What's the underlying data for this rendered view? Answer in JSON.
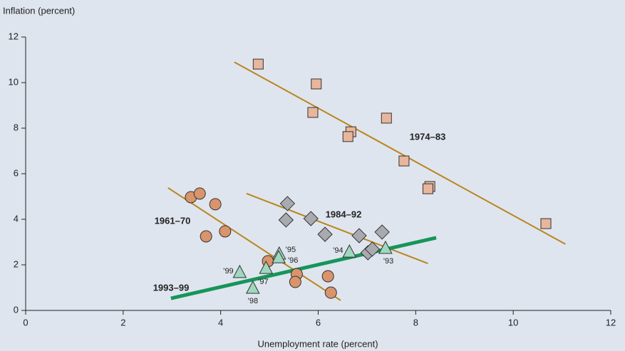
{
  "chart_data": {
    "type": "scatter",
    "y_label": "Inflation (percent)",
    "x_label": "Unemployment rate (percent)",
    "xlim": [
      0,
      12
    ],
    "ylim": [
      0,
      12
    ],
    "xticks": [
      0,
      2,
      4,
      6,
      8,
      10,
      12
    ],
    "yticks": [
      0,
      2,
      4,
      6,
      8,
      10,
      12
    ],
    "series": [
      {
        "name": "1974–83",
        "color": "#e8b69c",
        "marker": "square",
        "x": [
          4.77,
          5.96,
          5.89,
          6.67,
          6.61,
          7.4,
          7.76,
          8.29,
          8.25,
          10.67
        ],
        "values": [
          10.81,
          9.94,
          8.69,
          7.84,
          7.63,
          8.44,
          6.56,
          5.44,
          5.34,
          3.81
        ],
        "trend": {
          "x": [
            4.28,
            11.07
          ],
          "y": [
            10.9,
            2.91
          ]
        },
        "trend_color": "#b8861e"
      },
      {
        "name": "1984–92",
        "color": "#a9a9b0",
        "marker": "diamond",
        "x": [
          5.37,
          5.34,
          5.85,
          6.14,
          6.84,
          7.31,
          7.02,
          7.11
        ],
        "values": [
          4.69,
          3.97,
          4.03,
          3.34,
          3.28,
          3.44,
          2.53,
          2.69
        ],
        "trend": {
          "x": [
            4.53,
            8.25
          ],
          "y": [
            5.13,
            2.06
          ]
        },
        "trend_color": "#b8861e"
      },
      {
        "name": "1961–70",
        "color": "#d9946c",
        "marker": "circle",
        "x": [
          3.39,
          3.57,
          3.89,
          3.7,
          4.09,
          4.97,
          5.56,
          5.53,
          6.2,
          6.26
        ],
        "values": [
          4.97,
          5.13,
          4.66,
          3.25,
          3.47,
          2.16,
          1.59,
          1.25,
          1.5,
          0.78
        ],
        "trend": {
          "x": [
            2.92,
            6.46
          ],
          "y": [
            5.38,
            0.44
          ]
        },
        "trend_color": "#b8861e"
      },
      {
        "name": "1993–99",
        "color": "#9fd8bf",
        "marker": "triangle",
        "x": [
          4.39,
          4.66,
          4.93,
          5.2,
          5.19,
          6.64,
          7.38
        ],
        "values": [
          1.66,
          0.97,
          1.84,
          2.47,
          2.31,
          2.56,
          2.72
        ],
        "point_labels": [
          "’99",
          "’98",
          "’97",
          "’95",
          "’96",
          "’94",
          "’93"
        ],
        "trend": {
          "x": [
            2.98,
            8.42
          ],
          "y": [
            0.53,
            3.19
          ]
        },
        "trend_color": "#16955a"
      }
    ]
  }
}
